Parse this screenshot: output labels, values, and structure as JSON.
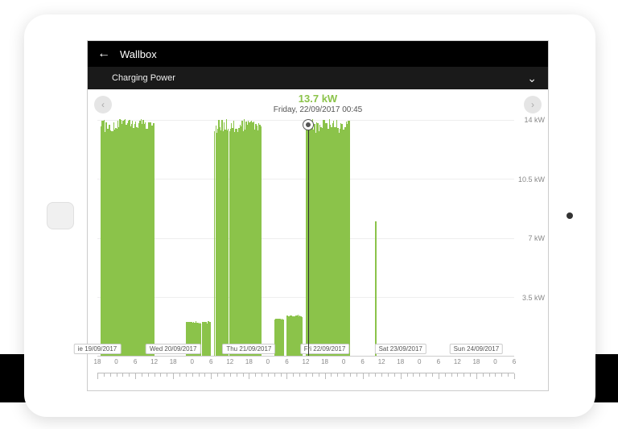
{
  "header": {
    "title": "Wallbox"
  },
  "subheader": {
    "label": "Charging Power"
  },
  "readout": {
    "value": "13.7 kW",
    "timestamp": "Friday, 22/09/2017 00:45"
  },
  "chart": {
    "type": "bar",
    "value_color": "#8bc34a",
    "bar_color": "#8bc34a",
    "background_color": "#ffffff",
    "grid_color": "#eeeeee",
    "axis_color": "#cccccc",
    "text_color": "#888888",
    "title_fontsize": 13,
    "label_fontsize": 10,
    "tick_fontsize": 9,
    "ylim": [
      0,
      14
    ],
    "y_ticks": [
      {
        "v": 3.5,
        "label": "3.5  kW"
      },
      {
        "v": 7,
        "label": "7  kW"
      },
      {
        "v": 10.5,
        "label": "10.5  kW"
      },
      {
        "v": 14,
        "label": "14  kW"
      }
    ],
    "x_domain_hours": 132,
    "x_hour_ticks": [
      18,
      0,
      6,
      12,
      18,
      0,
      6,
      12,
      18,
      0,
      6,
      12,
      18,
      0,
      6,
      12,
      18,
      0,
      6,
      12,
      18,
      0,
      6
    ],
    "date_labels": [
      {
        "pos_h": 0,
        "text": "ie 19/09/2017"
      },
      {
        "pos_h": 24,
        "text": "Wed 20/09/2017"
      },
      {
        "pos_h": 48,
        "text": "Thu 21/09/2017"
      },
      {
        "pos_h": 72,
        "text": "Fri 22/09/2017"
      },
      {
        "pos_h": 96,
        "text": "Sat 23/09/2017"
      },
      {
        "pos_h": 120,
        "text": "Sun 24/09/2017"
      }
    ],
    "cursor": {
      "pos_h": 66.75,
      "value": 13.7
    },
    "blocks": [
      {
        "start_h": 1,
        "end_h": 18,
        "value": 13.8,
        "jitter": true
      },
      {
        "start_h": 28,
        "end_h": 36,
        "value": 2.0,
        "jitter": true
      },
      {
        "start_h": 37,
        "end_h": 52,
        "value": 13.8,
        "jitter": true
      },
      {
        "start_h": 56,
        "end_h": 59,
        "value": 2.2,
        "jitter": true
      },
      {
        "start_h": 60,
        "end_h": 65,
        "value": 2.4,
        "jitter": true
      },
      {
        "start_h": 66,
        "end_h": 80,
        "value": 13.8,
        "jitter": true
      },
      {
        "start_h": 88,
        "end_h": 88.3,
        "value": 8.0,
        "jitter": false
      },
      {
        "start_h": 72,
        "end_h": 73,
        "value": 13.8,
        "jitter": false
      }
    ]
  }
}
